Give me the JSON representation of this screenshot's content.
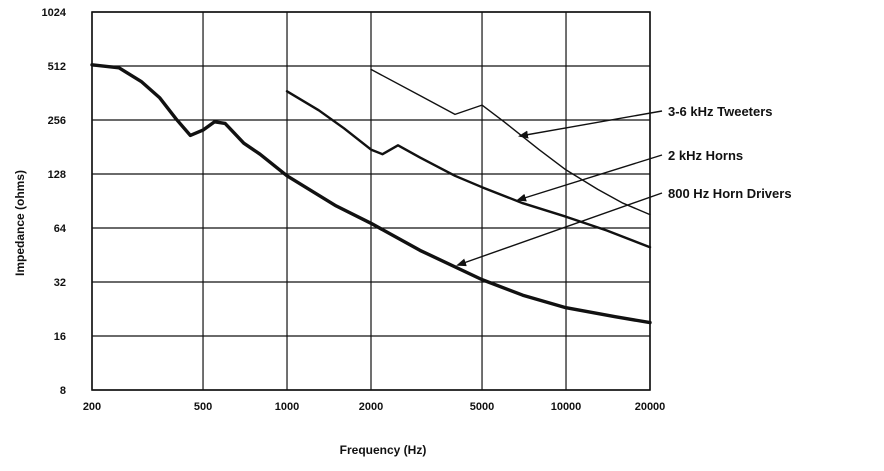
{
  "chart_data": {
    "type": "line",
    "title": "",
    "xlabel": "Frequency (Hz)",
    "ylabel": "Impedance (ohms)",
    "x_scale": "log",
    "y_scale": "log",
    "xlim": [
      200,
      20000
    ],
    "ylim": [
      8,
      1024
    ],
    "grid": true,
    "legend": "annotations at right with arrows",
    "x_ticks": [
      200,
      500,
      1000,
      2000,
      5000,
      10000,
      20000
    ],
    "x_tick_labels": [
      "200",
      "500",
      "1000",
      "2000",
      "5000",
      "10000",
      "20000"
    ],
    "y_ticks": [
      8,
      16,
      32,
      64,
      128,
      256,
      512,
      1024
    ],
    "y_tick_labels": [
      "8",
      "16",
      "32",
      "64",
      "128",
      "256",
      "512",
      "1024"
    ],
    "series": [
      {
        "name": "3-6 kHz Tweeters",
        "x": [
          2000,
          3000,
          4000,
          5000,
          6000,
          8000,
          10000,
          13000,
          16000,
          20000
        ],
        "y": [
          490,
          350,
          275,
          310,
          250,
          175,
          135,
          105,
          88,
          76
        ]
      },
      {
        "name": "2 kHz Horns",
        "x": [
          1000,
          1300,
          1600,
          2000,
          2200,
          2500,
          3000,
          4000,
          5000,
          7000,
          10000,
          14000,
          20000
        ],
        "y": [
          370,
          290,
          230,
          175,
          165,
          185,
          158,
          125,
          108,
          88,
          74,
          62,
          50
        ]
      },
      {
        "name": "800 Hz Horn Drivers",
        "x": [
          200,
          250,
          300,
          350,
          400,
          450,
          500,
          550,
          600,
          700,
          800,
          1000,
          1500,
          2000,
          3000,
          5000,
          7000,
          10000,
          15000,
          20000
        ],
        "y": [
          520,
          500,
          420,
          340,
          260,
          210,
          225,
          250,
          245,
          190,
          165,
          125,
          85,
          68,
          48,
          33,
          27,
          23,
          20.5,
          19
        ]
      }
    ],
    "annotations": [
      {
        "text": "3-6 kHz Tweeters",
        "series": "3-6 kHz Tweeters"
      },
      {
        "text": "2 kHz Horns",
        "series": "2 kHz Horns"
      },
      {
        "text": "800 Hz Horn Drivers",
        "series": "800 Hz Horn Drivers"
      }
    ],
    "colors": {
      "line": "#111111",
      "grid": "#111111",
      "background": "#ffffff"
    }
  }
}
